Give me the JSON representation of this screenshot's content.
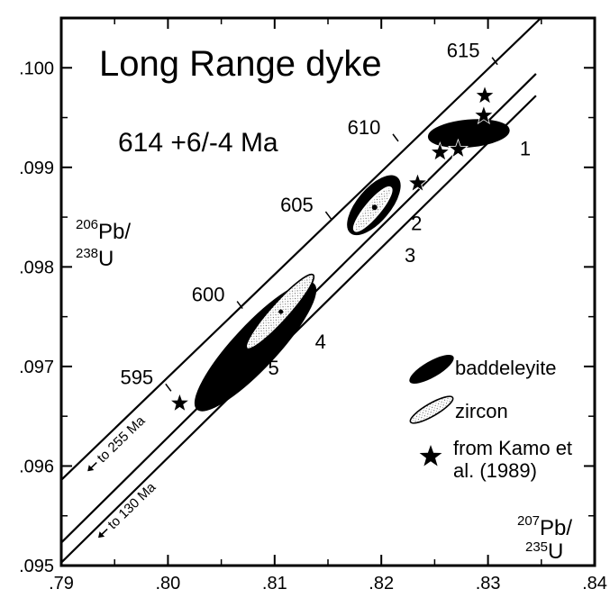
{
  "chart_data": {
    "type": "scatter",
    "title": "Long Range dyke",
    "subtitle": "614 +6/-4 Ma",
    "axes": {
      "x": {
        "label_sup": "207",
        "label_main": "Pb/",
        "label_sub": "235",
        "label_tail": "U",
        "lim": [
          0.79,
          0.84
        ],
        "ticks": [
          0.79,
          0.8,
          0.81,
          0.82,
          0.83,
          0.84
        ],
        "tick_labels": [
          ".79",
          ".80",
          ".81",
          ".82",
          ".83",
          ".84"
        ]
      },
      "y": {
        "label_sup": "206",
        "label_main": "Pb/",
        "label_sub": "238",
        "label_tail": "U",
        "lim": [
          0.095,
          0.1005
        ],
        "ticks": [
          0.095,
          0.096,
          0.097,
          0.098,
          0.099,
          0.1
        ],
        "tick_labels": [
          ".095",
          ".096",
          ".097",
          ".098",
          ".099",
          ".100"
        ]
      }
    },
    "concordia_ages": [
      {
        "label": "595",
        "x": 0.7986,
        "y": 0.09677
      },
      {
        "label": "600",
        "x": 0.8053,
        "y": 0.0976
      },
      {
        "label": "605",
        "x": 0.8136,
        "y": 0.0985
      },
      {
        "label": "610",
        "x": 0.8199,
        "y": 0.09928
      },
      {
        "label": "615",
        "x": 0.8292,
        "y": 0.10005
      }
    ],
    "discordia": [
      {
        "label": "to 255 Ma",
        "x1": 0.79,
        "y1": 0.09586,
        "x2": 0.84,
        "y2": 0.10102
      },
      {
        "label": "to 130 Ma",
        "x1": 0.79,
        "y1": 0.09523,
        "x2": 0.8345,
        "y2": 0.09994
      },
      {
        "x1": 0.79,
        "y1": 0.09503,
        "x2": 0.8345,
        "y2": 0.09972
      }
    ],
    "fractions": [
      {
        "label": "1",
        "mineral": "baddeleyite",
        "cx": 0.8282,
        "cy": 0.09934,
        "rx_px": 45,
        "ry_px": 15,
        "angle": -5,
        "label_x": 0.8335,
        "label_y": 0.09912
      },
      {
        "label": "2",
        "mineral": "baddeleyite",
        "cx": 0.8193,
        "cy": 0.09862,
        "rx_px": 40,
        "ry_px": 18,
        "angle": -50,
        "label_x": 0.8233,
        "label_y": 0.09837
      },
      {
        "label": "3",
        "mineral": "zircon",
        "cx": 0.8192,
        "cy": 0.09858,
        "rx_px": 31,
        "ry_px": 8,
        "angle": -50,
        "label_x": 0.8227,
        "label_y": 0.09805
      },
      {
        "label": "4",
        "mineral": "zircon",
        "cx": 0.8105,
        "cy": 0.09755,
        "rx_px": 55,
        "ry_px": 10,
        "angle": -48,
        "label_x": 0.8143,
        "label_y": 0.09718
      },
      {
        "label": "5",
        "mineral": "baddeleyite",
        "cx": 0.8082,
        "cy": 0.0972,
        "rx_px": 95,
        "ry_px": 24,
        "angle": -47,
        "label_x": 0.8099,
        "label_y": 0.09692
      }
    ],
    "kamo_points": [
      {
        "x": 0.8011,
        "y": 0.09663
      },
      {
        "x": 0.8234,
        "y": 0.09884
      },
      {
        "x": 0.8255,
        "y": 0.09915
      },
      {
        "x": 0.8272,
        "y": 0.09918
      },
      {
        "x": 0.8296,
        "y": 0.09952
      },
      {
        "x": 0.8297,
        "y": 0.09972
      }
    ],
    "legend": {
      "placement": "right",
      "items": [
        {
          "symbol": "ellipse-filled",
          "label": "baddeleyite"
        },
        {
          "symbol": "ellipse-dotted",
          "label": "zircon"
        },
        {
          "symbol": "star",
          "label_line1": "from Kamo et",
          "label_line2": "al. (1989)"
        }
      ]
    }
  }
}
